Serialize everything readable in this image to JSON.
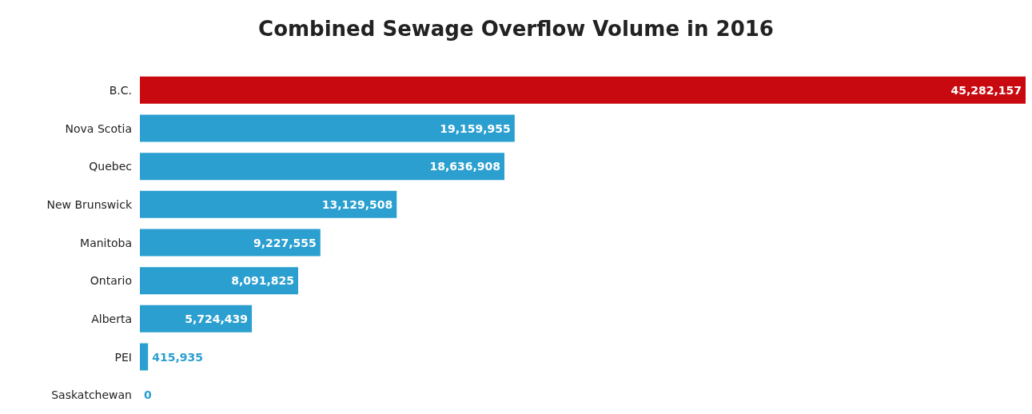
{
  "chart_data": {
    "type": "bar",
    "orientation": "horizontal",
    "title": "Combined Sewage Overflow Volume in 2016",
    "categories": [
      "B.C.",
      "Nova Scotia",
      "Quebec",
      "New Brunswick",
      "Manitoba",
      "Ontario",
      "Alberta",
      "PEI",
      "Saskatchewan"
    ],
    "values": [
      45282157,
      19159955,
      18636908,
      13129508,
      9227555,
      8091825,
      5724439,
      415935,
      0
    ],
    "value_labels": [
      "45,282,157",
      "19,159,955",
      "18,636,908",
      "13,129,508",
      "9,227,555",
      "8,091,825",
      "5,724,439",
      "415,935",
      "0"
    ],
    "colors": [
      "#c8090f",
      "#2a9fd0",
      "#2a9fd0",
      "#2a9fd0",
      "#2a9fd0",
      "#2a9fd0",
      "#2a9fd0",
      "#2a9fd0",
      "#2a9fd0"
    ]
  }
}
